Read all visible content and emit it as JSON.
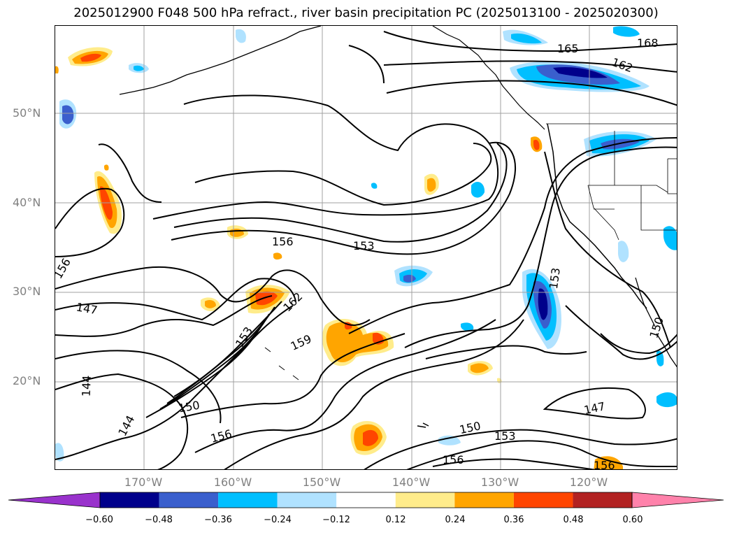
{
  "title": "2025012900 F048 500 hPa refract., river basin precipitation PC (2025013100 - 2025020300)",
  "lat_labels": [
    "50°N",
    "40°N",
    "30°N",
    "20°N"
  ],
  "lon_labels": [
    "170°W",
    "160°W",
    "150°W",
    "140°W",
    "130°W",
    "120°W"
  ],
  "contour_labels": [
    "165",
    "168",
    "162",
    "156",
    "153",
    "156",
    "147",
    "153",
    "162",
    "159",
    "144",
    "144",
    "150",
    "156",
    "150",
    "150",
    "153",
    "156",
    "147",
    "156",
    "153"
  ],
  "colorbar": {
    "ticks": [
      "−0.60",
      "−0.48",
      "−0.36",
      "−0.24",
      "−0.12",
      "0.12",
      "0.24",
      "0.36",
      "0.48",
      "0.60"
    ],
    "colors": [
      "#9932cc",
      "#00008b",
      "#3a5fcd",
      "#00bfff",
      "#b0e2ff",
      "#ffffff",
      "#ffec8b",
      "#ffa500",
      "#ff4500",
      "#b22222",
      "#ff82ab"
    ]
  },
  "fill_colors": {
    "light_blue": "#b0e2ff",
    "blue": "#00bfff",
    "royal": "#3a5fcd",
    "navy": "#00008b",
    "light_yellow": "#ffec8b",
    "orange": "#ffa500",
    "red_orange": "#ff4500"
  }
}
